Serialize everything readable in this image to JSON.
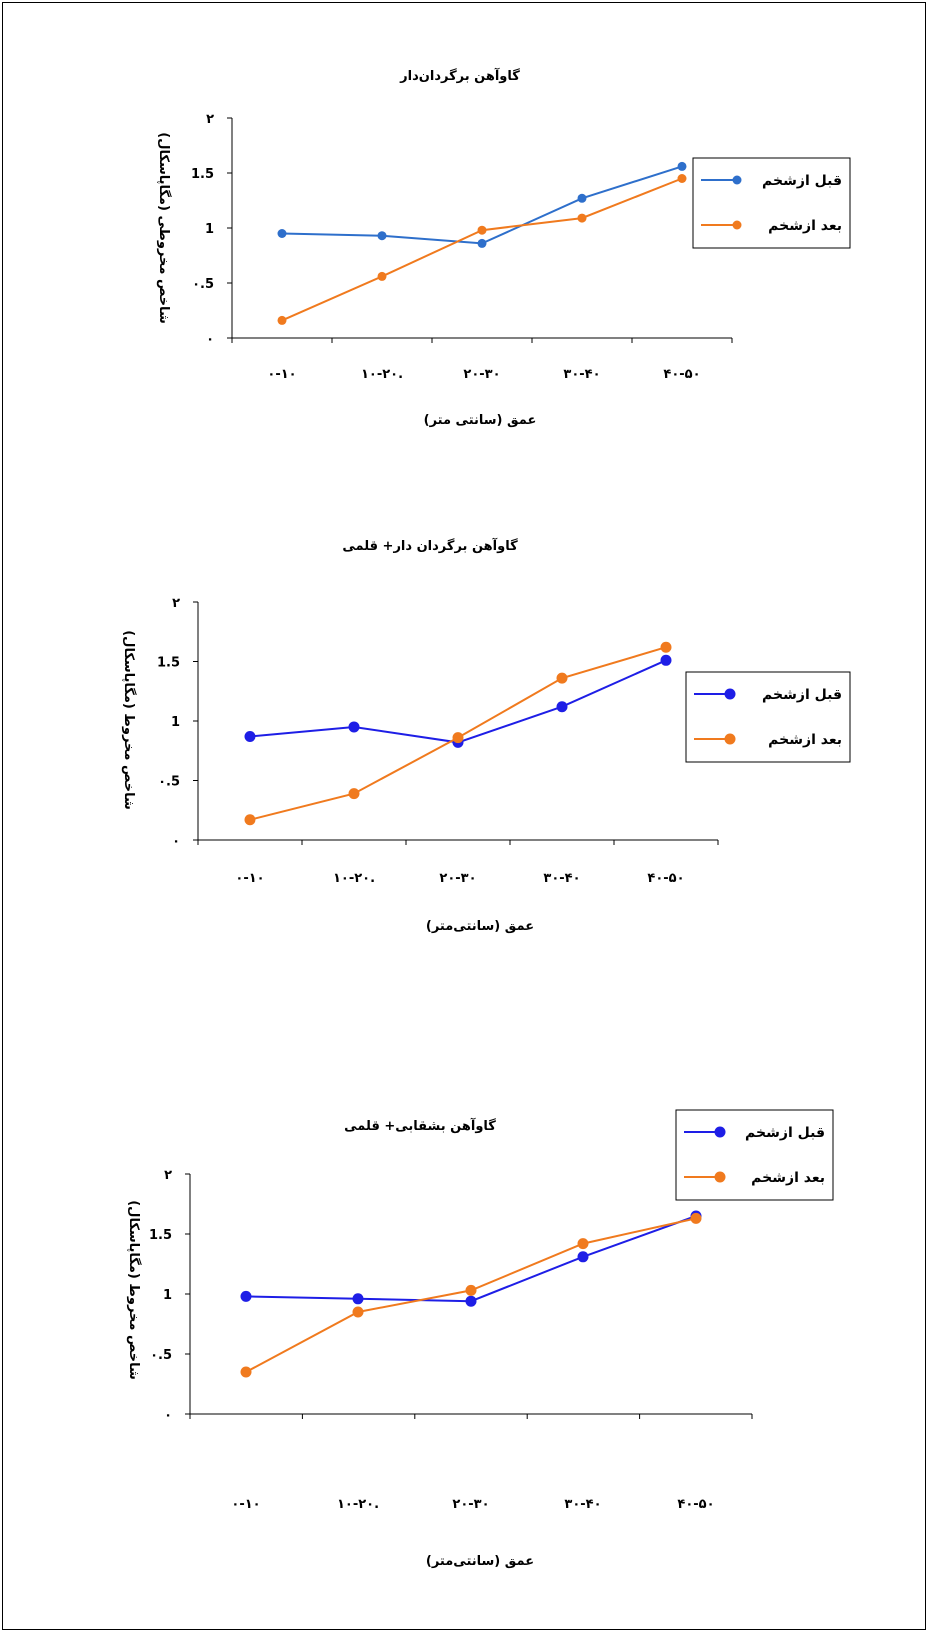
{
  "colors": {
    "before_panel1": "#2E6FCB",
    "before_blue": "#1E1EE6",
    "after_orange": "#F07A1E"
  },
  "chart_data": [
    {
      "type": "line",
      "title": "گاوآهن برگردان‌دار",
      "xlabel": "عمق (سانتی متر)",
      "ylabel": "شاخص مخروطی (مگاپاسکال)",
      "categories": [
        "۰-۱۰",
        "۱۰-۲۰.",
        "۲۰-۳۰",
        "۳۰-۴۰",
        "۴۰-۵۰"
      ],
      "y_ticks": [
        "۰",
        "۰.5",
        "1",
        "1.5",
        "۲"
      ],
      "ylim": [
        0,
        2
      ],
      "legend_position": "right",
      "series": [
        {
          "name": "قبل ازشخم",
          "values": [
            0.95,
            0.93,
            0.86,
            1.27,
            1.56
          ]
        },
        {
          "name": "بعد ازشخم",
          "values": [
            0.16,
            0.56,
            0.98,
            1.09,
            1.45
          ]
        }
      ]
    },
    {
      "type": "line",
      "title": "گاوآهن برگردان دار+ قلمی",
      "xlabel": "عمق (سانتی‌متر)",
      "ylabel": "شاخص مخروط (مگاپاسکال)",
      "categories": [
        "۰-۱۰",
        "۱۰-۲۰.",
        "۲۰-۳۰",
        "۳۰-۴۰",
        "۴۰-۵۰"
      ],
      "y_ticks": [
        "۰",
        "۰.5",
        "1",
        "1.5",
        "۲"
      ],
      "ylim": [
        0,
        2
      ],
      "legend_position": "right",
      "series": [
        {
          "name": "قبل ازشخم",
          "values": [
            0.87,
            0.95,
            0.82,
            1.12,
            1.51
          ]
        },
        {
          "name": "بعد ازشخم",
          "values": [
            0.17,
            0.39,
            0.86,
            1.36,
            1.62
          ]
        }
      ]
    },
    {
      "type": "line",
      "title": "گاوآهن بشقابی+ قلمی",
      "xlabel": "عمق (سانتی‌متر)",
      "ylabel": "شاخص مخروط (مگاپاسکال)",
      "categories": [
        "۰-۱۰",
        "۱۰-۲۰.",
        "۲۰-۳۰",
        "۳۰-۴۰",
        "۴۰-۵۰"
      ],
      "y_ticks": [
        "۰",
        "۰.5",
        "1",
        "1.5",
        "۲"
      ],
      "ylim": [
        0,
        2
      ],
      "legend_position": "top-right",
      "series": [
        {
          "name": "قبل ازشخم",
          "values": [
            0.98,
            0.96,
            0.94,
            1.31,
            1.65
          ]
        },
        {
          "name": "بعد ازشخم",
          "values": [
            0.35,
            0.85,
            1.03,
            1.42,
            1.63
          ]
        }
      ]
    }
  ]
}
